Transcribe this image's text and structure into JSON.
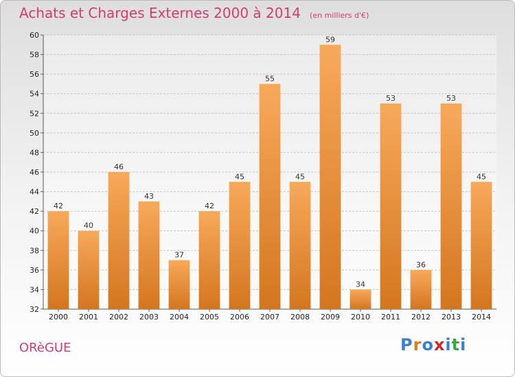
{
  "title": "Achats et Charges Externes 2000 à 2014",
  "unit_note": "(en milliers d'€)",
  "commune": "ORèGUE",
  "logo": {
    "letters": [
      "P",
      "r",
      "o",
      "x",
      "i",
      "t",
      "i"
    ],
    "colors": [
      "#3b7fd4",
      "#e07a1a",
      "#3b7fd4",
      "#cc2a2a",
      "#3b7fd4",
      "#3aa83a",
      "#3b7fd4"
    ]
  },
  "colors": {
    "bar_top": "#f7a95a",
    "bar_bottom": "#d4761f",
    "title": "#d43d6b"
  },
  "chart_data": {
    "type": "bar",
    "title": "Achats et Charges Externes 2000 à 2014",
    "subtitle": "(en milliers d'€)",
    "categories": [
      "2000",
      "2001",
      "2002",
      "2003",
      "2004",
      "2005",
      "2006",
      "2007",
      "2008",
      "2009",
      "2010",
      "2011",
      "2012",
      "2013",
      "2014"
    ],
    "values": [
      42,
      40,
      46,
      43,
      37,
      42,
      45,
      55,
      45,
      59,
      34,
      53,
      36,
      53,
      45
    ],
    "ylim": [
      32,
      60
    ],
    "yticks": [
      32,
      34,
      36,
      38,
      40,
      42,
      44,
      46,
      48,
      50,
      52,
      54,
      56,
      58,
      60
    ],
    "grid": true,
    "xlabel": "",
    "ylabel": ""
  }
}
